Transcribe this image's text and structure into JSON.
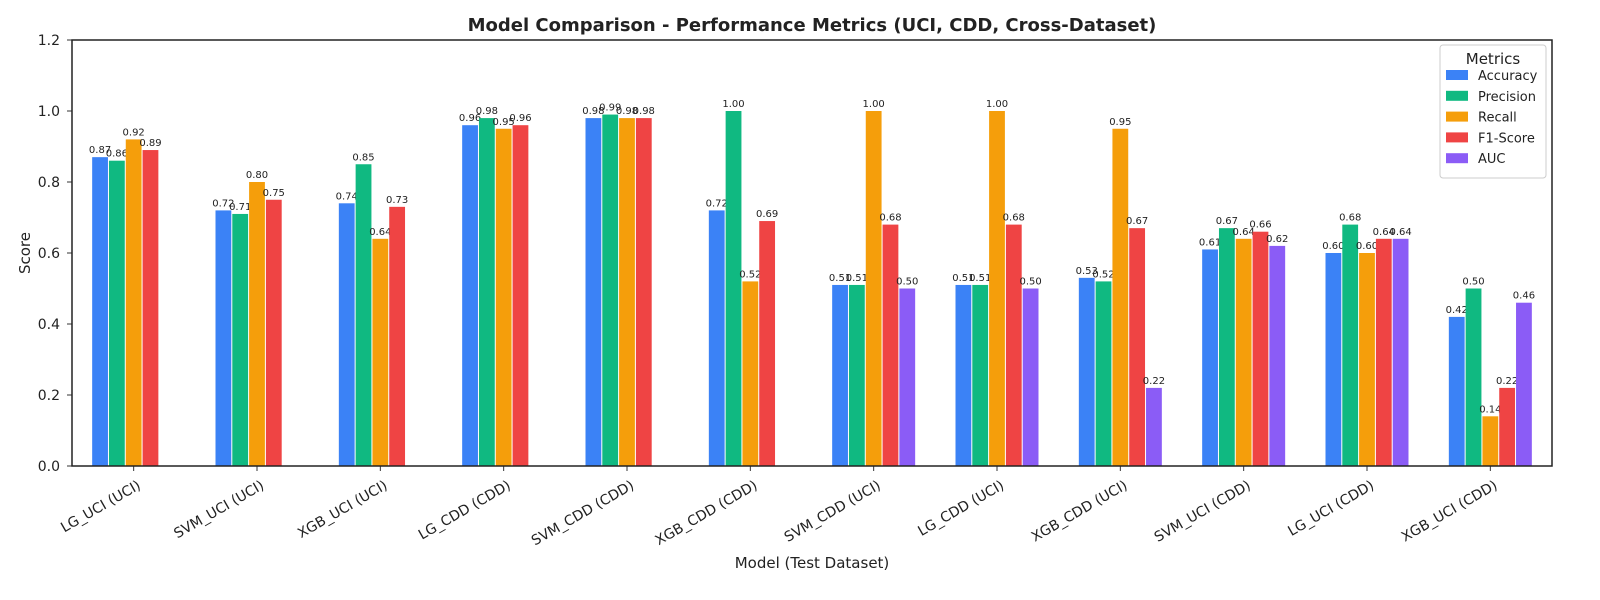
{
  "chart_data": {
    "type": "bar",
    "title": "Model Comparison - Performance Metrics (UCI, CDD, Cross-Dataset)",
    "xlabel": "Model (Test Dataset)",
    "ylabel": "Score",
    "ylim": [
      0,
      1.2
    ],
    "yticks": [
      "0.0",
      "0.2",
      "0.4",
      "0.6",
      "0.8",
      "1.0",
      "1.2"
    ],
    "grid": false,
    "legend": {
      "title": "Metrics",
      "placement": "top-right"
    },
    "categories": [
      "LG_UCI (UCI)",
      "SVM_UCI (UCI)",
      "XGB_UCI (UCI)",
      "LG_CDD (CDD)",
      "SVM_CDD (CDD)",
      "XGB_CDD (CDD)",
      "SVM_CDD (UCI)",
      "LG_CDD (UCI)",
      "XGB_CDD (UCI)",
      "SVM_UCI (CDD)",
      "LG_UCI (CDD)",
      "XGB_UCI (CDD)"
    ],
    "series": [
      {
        "name": "Accuracy",
        "color": "#3b82f6",
        "values": [
          0.87,
          0.72,
          0.74,
          0.96,
          0.98,
          0.72,
          0.51,
          0.51,
          0.53,
          0.61,
          0.6,
          0.42
        ]
      },
      {
        "name": "Precision",
        "color": "#10b981",
        "values": [
          0.86,
          0.71,
          0.85,
          0.98,
          0.99,
          1.0,
          0.51,
          0.51,
          0.52,
          0.67,
          0.68,
          0.5
        ]
      },
      {
        "name": "Recall",
        "color": "#f59e0b",
        "values": [
          0.92,
          0.8,
          0.64,
          0.95,
          0.98,
          0.52,
          1.0,
          1.0,
          0.95,
          0.64,
          0.6,
          0.14
        ]
      },
      {
        "name": "F1-Score",
        "color": "#ef4444",
        "values": [
          0.89,
          0.75,
          0.73,
          0.96,
          0.98,
          0.69,
          0.68,
          0.68,
          0.67,
          0.66,
          0.64,
          0.22
        ]
      },
      {
        "name": "AUC",
        "color": "#8b5cf6",
        "values": [
          null,
          null,
          null,
          null,
          null,
          null,
          0.5,
          0.5,
          0.22,
          0.62,
          0.64,
          0.46
        ]
      }
    ]
  }
}
